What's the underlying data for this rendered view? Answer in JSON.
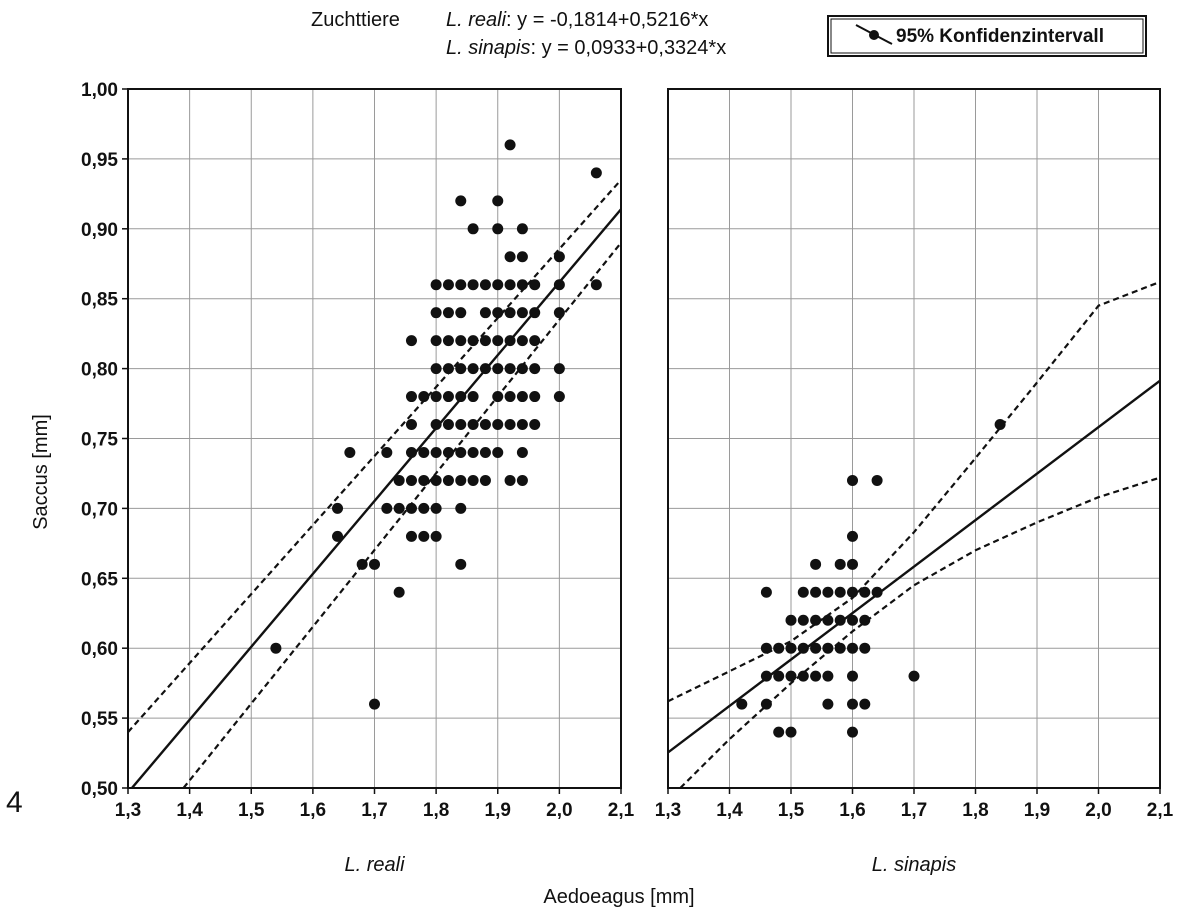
{
  "figure_label": "4",
  "header": {
    "group_label": "Zuchttiere",
    "eq1_species": "L. reali",
    "eq1_formula": ": y = -0,1814+0,5216*x",
    "eq2_species": "L. sinapis",
    "eq2_formula": ": y = 0,0933+0,3324*x"
  },
  "legend": {
    "label": "95% Konfidenzintervall"
  },
  "ylabel": "Saccus [mm]",
  "xlabel": "Aedoeagus [mm]",
  "colors": {
    "ink": "#111111",
    "grid": "#9a9a9a",
    "background": "#ffffff"
  },
  "chart_data": [
    {
      "type": "scatter",
      "panel_label": "L. reali",
      "xlim": [
        1.3,
        2.1
      ],
      "ylim": [
        0.5,
        1.0
      ],
      "x_ticks": [
        "1,3",
        "1,4",
        "1,5",
        "1,6",
        "1,7",
        "1,8",
        "1,9",
        "2,0",
        "2,1"
      ],
      "y_ticks": [
        "0,50",
        "0,55",
        "0,60",
        "0,65",
        "0,70",
        "0,75",
        "0,80",
        "0,85",
        "0,90",
        "0,95",
        "1,00"
      ],
      "grid": true,
      "regression": {
        "intercept": -0.1814,
        "slope": 0.5216
      },
      "ci_upper": [
        [
          1.3,
          0.54
        ],
        [
          2.1,
          0.935
        ]
      ],
      "ci_lower": [
        [
          1.39,
          0.5
        ],
        [
          2.1,
          0.89
        ]
      ],
      "points": [
        [
          1.54,
          0.6
        ],
        [
          1.64,
          0.7
        ],
        [
          1.64,
          0.68
        ],
        [
          1.66,
          0.74
        ],
        [
          1.68,
          0.66
        ],
        [
          1.7,
          0.66
        ],
        [
          1.7,
          0.56
        ],
        [
          1.72,
          0.74
        ],
        [
          1.72,
          0.7
        ],
        [
          1.74,
          0.72
        ],
        [
          1.74,
          0.7
        ],
        [
          1.74,
          0.64
        ],
        [
          1.76,
          0.82
        ],
        [
          1.76,
          0.78
        ],
        [
          1.76,
          0.76
        ],
        [
          1.76,
          0.74
        ],
        [
          1.76,
          0.72
        ],
        [
          1.76,
          0.7
        ],
        [
          1.76,
          0.68
        ],
        [
          1.78,
          0.78
        ],
        [
          1.78,
          0.74
        ],
        [
          1.78,
          0.72
        ],
        [
          1.78,
          0.7
        ],
        [
          1.78,
          0.68
        ],
        [
          1.8,
          0.86
        ],
        [
          1.8,
          0.84
        ],
        [
          1.8,
          0.82
        ],
        [
          1.8,
          0.8
        ],
        [
          1.8,
          0.78
        ],
        [
          1.8,
          0.76
        ],
        [
          1.8,
          0.74
        ],
        [
          1.8,
          0.72
        ],
        [
          1.8,
          0.7
        ],
        [
          1.8,
          0.68
        ],
        [
          1.82,
          0.86
        ],
        [
          1.82,
          0.84
        ],
        [
          1.82,
          0.82
        ],
        [
          1.82,
          0.8
        ],
        [
          1.82,
          0.78
        ],
        [
          1.82,
          0.76
        ],
        [
          1.82,
          0.74
        ],
        [
          1.82,
          0.72
        ],
        [
          1.84,
          0.92
        ],
        [
          1.84,
          0.86
        ],
        [
          1.84,
          0.84
        ],
        [
          1.84,
          0.82
        ],
        [
          1.84,
          0.8
        ],
        [
          1.84,
          0.78
        ],
        [
          1.84,
          0.76
        ],
        [
          1.84,
          0.74
        ],
        [
          1.84,
          0.72
        ],
        [
          1.84,
          0.7
        ],
        [
          1.84,
          0.66
        ],
        [
          1.86,
          0.9
        ],
        [
          1.86,
          0.86
        ],
        [
          1.86,
          0.82
        ],
        [
          1.86,
          0.8
        ],
        [
          1.86,
          0.78
        ],
        [
          1.86,
          0.76
        ],
        [
          1.86,
          0.74
        ],
        [
          1.86,
          0.72
        ],
        [
          1.88,
          0.86
        ],
        [
          1.88,
          0.84
        ],
        [
          1.88,
          0.82
        ],
        [
          1.88,
          0.8
        ],
        [
          1.88,
          0.76
        ],
        [
          1.88,
          0.74
        ],
        [
          1.88,
          0.72
        ],
        [
          1.9,
          0.92
        ],
        [
          1.9,
          0.9
        ],
        [
          1.9,
          0.86
        ],
        [
          1.9,
          0.84
        ],
        [
          1.9,
          0.82
        ],
        [
          1.9,
          0.8
        ],
        [
          1.9,
          0.78
        ],
        [
          1.9,
          0.76
        ],
        [
          1.9,
          0.74
        ],
        [
          1.92,
          0.96
        ],
        [
          1.92,
          0.88
        ],
        [
          1.92,
          0.86
        ],
        [
          1.92,
          0.84
        ],
        [
          1.92,
          0.82
        ],
        [
          1.92,
          0.8
        ],
        [
          1.92,
          0.78
        ],
        [
          1.92,
          0.76
        ],
        [
          1.92,
          0.72
        ],
        [
          1.94,
          0.9
        ],
        [
          1.94,
          0.88
        ],
        [
          1.94,
          0.86
        ],
        [
          1.94,
          0.84
        ],
        [
          1.94,
          0.82
        ],
        [
          1.94,
          0.8
        ],
        [
          1.94,
          0.78
        ],
        [
          1.94,
          0.76
        ],
        [
          1.94,
          0.74
        ],
        [
          1.94,
          0.72
        ],
        [
          1.96,
          0.86
        ],
        [
          1.96,
          0.84
        ],
        [
          1.96,
          0.82
        ],
        [
          1.96,
          0.8
        ],
        [
          1.96,
          0.78
        ],
        [
          1.96,
          0.76
        ],
        [
          2.0,
          0.88
        ],
        [
          2.0,
          0.86
        ],
        [
          2.0,
          0.84
        ],
        [
          2.0,
          0.8
        ],
        [
          2.0,
          0.78
        ],
        [
          2.06,
          0.94
        ],
        [
          2.06,
          0.86
        ]
      ]
    },
    {
      "type": "scatter",
      "panel_label": "L. sinapis",
      "xlim": [
        1.3,
        2.1
      ],
      "ylim": [
        0.5,
        1.0
      ],
      "x_ticks": [
        "1,3",
        "1,4",
        "1,5",
        "1,6",
        "1,7",
        "1,8",
        "1,9",
        "2,0",
        "2,1"
      ],
      "grid": true,
      "regression": {
        "intercept": 0.0933,
        "slope": 0.3324
      },
      "ci_upper": [
        [
          1.3,
          0.562
        ],
        [
          1.5,
          0.605
        ],
        [
          1.6,
          0.636
        ],
        [
          1.7,
          0.683
        ],
        [
          1.8,
          0.736
        ],
        [
          1.9,
          0.79
        ],
        [
          2.0,
          0.845
        ],
        [
          2.1,
          0.862
        ]
      ],
      "ci_lower": [
        [
          1.32,
          0.5
        ],
        [
          1.4,
          0.535
        ],
        [
          1.5,
          0.575
        ],
        [
          1.6,
          0.612
        ],
        [
          1.7,
          0.645
        ],
        [
          1.8,
          0.67
        ],
        [
          1.9,
          0.69
        ],
        [
          2.0,
          0.708
        ],
        [
          2.1,
          0.722
        ]
      ],
      "points": [
        [
          1.42,
          0.56
        ],
        [
          1.46,
          0.64
        ],
        [
          1.46,
          0.6
        ],
        [
          1.46,
          0.58
        ],
        [
          1.46,
          0.56
        ],
        [
          1.48,
          0.6
        ],
        [
          1.48,
          0.58
        ],
        [
          1.48,
          0.54
        ],
        [
          1.5,
          0.62
        ],
        [
          1.5,
          0.6
        ],
        [
          1.5,
          0.58
        ],
        [
          1.5,
          0.54
        ],
        [
          1.52,
          0.64
        ],
        [
          1.52,
          0.62
        ],
        [
          1.52,
          0.6
        ],
        [
          1.52,
          0.58
        ],
        [
          1.54,
          0.66
        ],
        [
          1.54,
          0.64
        ],
        [
          1.54,
          0.62
        ],
        [
          1.54,
          0.6
        ],
        [
          1.54,
          0.58
        ],
        [
          1.56,
          0.64
        ],
        [
          1.56,
          0.62
        ],
        [
          1.56,
          0.6
        ],
        [
          1.56,
          0.58
        ],
        [
          1.56,
          0.56
        ],
        [
          1.58,
          0.66
        ],
        [
          1.58,
          0.64
        ],
        [
          1.58,
          0.62
        ],
        [
          1.58,
          0.6
        ],
        [
          1.6,
          0.72
        ],
        [
          1.6,
          0.68
        ],
        [
          1.6,
          0.66
        ],
        [
          1.6,
          0.64
        ],
        [
          1.6,
          0.62
        ],
        [
          1.6,
          0.6
        ],
        [
          1.6,
          0.58
        ],
        [
          1.6,
          0.56
        ],
        [
          1.6,
          0.54
        ],
        [
          1.62,
          0.64
        ],
        [
          1.62,
          0.62
        ],
        [
          1.62,
          0.6
        ],
        [
          1.62,
          0.56
        ],
        [
          1.64,
          0.72
        ],
        [
          1.64,
          0.64
        ],
        [
          1.7,
          0.58
        ],
        [
          1.84,
          0.76
        ]
      ]
    }
  ]
}
